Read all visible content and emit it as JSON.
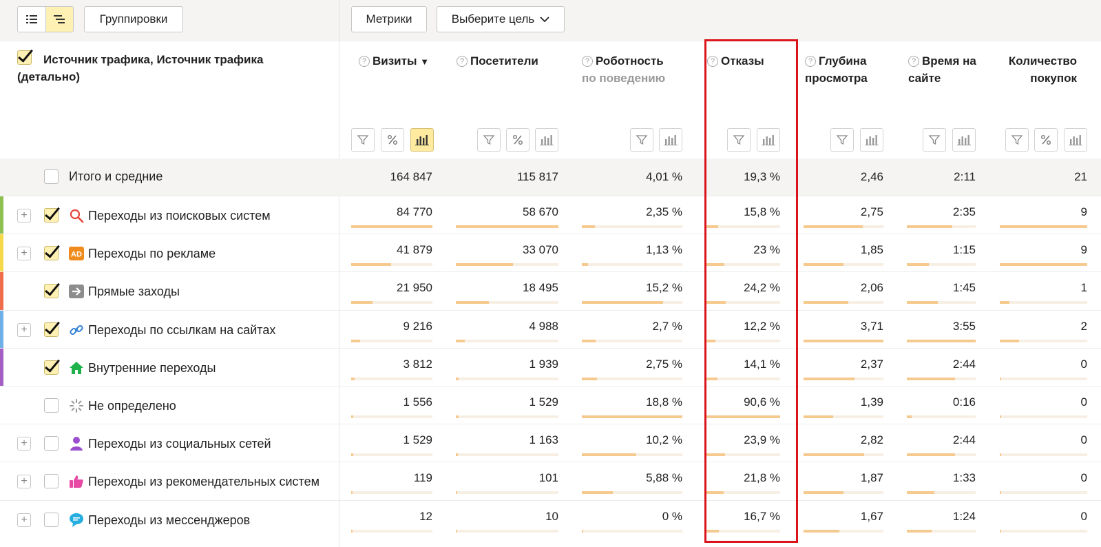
{
  "toolbar": {
    "groupings_label": "Группировки",
    "metrics_label": "Метрики",
    "goal_label": "Выберите цель"
  },
  "header": {
    "dimension_title": "Источник трафика, Источник трафика (детально)",
    "columns": [
      {
        "label": "Визиты",
        "sort": "▼"
      },
      {
        "label": "Посетители"
      },
      {
        "label": "Роботность",
        "sub": "по поведению"
      },
      {
        "label": "Отказы"
      },
      {
        "label": "Глубина просмотра"
      },
      {
        "label": "Время на сайте"
      },
      {
        "label": "Количество покупок"
      }
    ]
  },
  "totals": {
    "label": "Итого и средние",
    "values": [
      "164 847",
      "115 817",
      "4,01 %",
      "19,3 %",
      "2,46",
      "2:11",
      "21"
    ]
  },
  "rows": [
    {
      "label": "Переходы из поисковых систем",
      "icon": "search-icon",
      "expandable": true,
      "checked": true,
      "color": "#8cc152",
      "values": [
        "84 770",
        "58 670",
        "2,35 %",
        "15,8 %",
        "2,75",
        "2:35",
        "9"
      ],
      "bars": [
        1.0,
        1.0,
        0.13,
        0.17,
        0.74,
        0.66,
        1.0
      ]
    },
    {
      "label": "Переходы по рекламе",
      "icon": "ad-icon",
      "expandable": true,
      "checked": true,
      "color": "#f6d84b",
      "values": [
        "41 879",
        "33 070",
        "1,13 %",
        "23 %",
        "1,85",
        "1:15",
        "9"
      ],
      "bars": [
        0.49,
        0.56,
        0.06,
        0.25,
        0.5,
        0.32,
        1.0
      ]
    },
    {
      "label": "Прямые заходы",
      "icon": "arrow-right-icon",
      "expandable": false,
      "checked": true,
      "color": "#ef6c4d",
      "values": [
        "21 950",
        "18 495",
        "15,2 %",
        "24,2 %",
        "2,06",
        "1:45",
        "1"
      ],
      "bars": [
        0.26,
        0.32,
        0.81,
        0.27,
        0.56,
        0.45,
        0.11
      ]
    },
    {
      "label": "Переходы по ссылкам на сайтах",
      "icon": "link-icon",
      "expandable": true,
      "checked": true,
      "color": "#6fb1e6",
      "values": [
        "9 216",
        "4 988",
        "2,7 %",
        "12,2 %",
        "3,71",
        "3:55",
        "2"
      ],
      "bars": [
        0.11,
        0.09,
        0.14,
        0.13,
        1.0,
        1.0,
        0.22
      ]
    },
    {
      "label": "Внутренние переходы",
      "icon": "home-icon",
      "expandable": false,
      "checked": true,
      "color": "#a55ec4",
      "values": [
        "3 812",
        "1 939",
        "2,75 %",
        "14,1 %",
        "2,37",
        "2:44",
        "0"
      ],
      "bars": [
        0.04,
        0.03,
        0.15,
        0.16,
        0.64,
        0.7,
        0.0
      ]
    },
    {
      "label": "Не определено",
      "icon": "spinner-icon",
      "expandable": false,
      "checked": false,
      "color": "",
      "values": [
        "1 556",
        "1 529",
        "18,8 %",
        "90,6 %",
        "1,39",
        "0:16",
        "0"
      ],
      "bars": [
        0.02,
        0.03,
        1.0,
        1.0,
        0.37,
        0.07,
        0.0
      ]
    },
    {
      "label": "Переходы из социальных сетей",
      "icon": "social-icon",
      "expandable": true,
      "checked": false,
      "color": "",
      "values": [
        "1 529",
        "1 163",
        "10,2 %",
        "23,9 %",
        "2,82",
        "2:44",
        "0"
      ],
      "bars": [
        0.02,
        0.02,
        0.54,
        0.26,
        0.76,
        0.7,
        0.0
      ]
    },
    {
      "label": "Переходы из рекомендательных систем",
      "icon": "thumbs-up-icon",
      "expandable": true,
      "checked": false,
      "color": "",
      "values": [
        "119",
        "101",
        "5,88 %",
        "21,8 %",
        "1,87",
        "1:33",
        "0"
      ],
      "bars": [
        0.0,
        0.0,
        0.31,
        0.24,
        0.5,
        0.4,
        0.0
      ]
    },
    {
      "label": "Переходы из мессенджеров",
      "icon": "chat-icon",
      "expandable": true,
      "checked": false,
      "color": "",
      "values": [
        "12",
        "10",
        "0 %",
        "16,7 %",
        "1,67",
        "1:24",
        "0"
      ],
      "bars": [
        0.0,
        0.0,
        0.0,
        0.18,
        0.45,
        0.36,
        0.0
      ]
    }
  ]
}
